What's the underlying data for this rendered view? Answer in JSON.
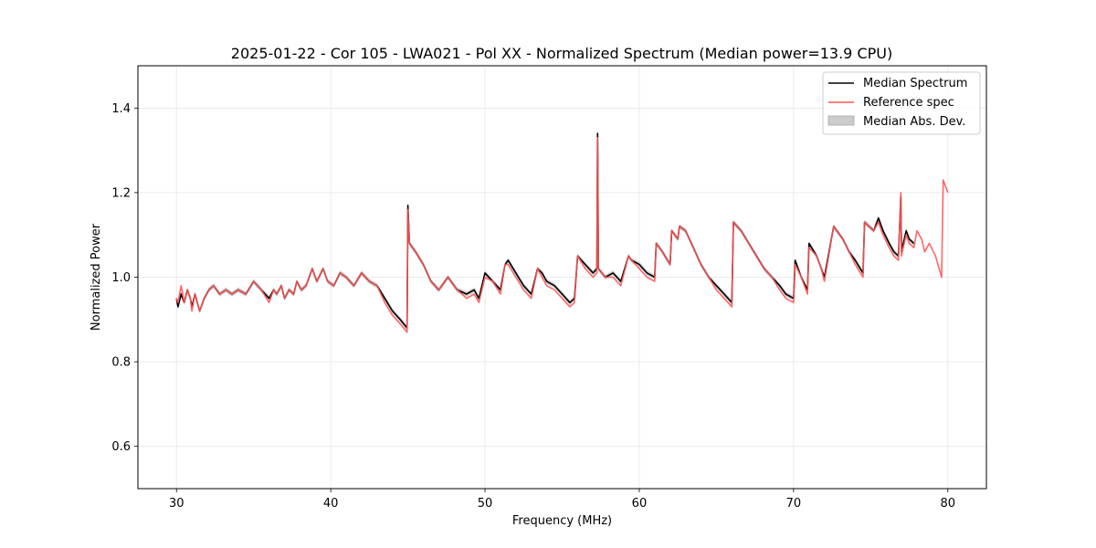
{
  "chart_data": {
    "type": "line",
    "title": "2025-01-22 - Cor 105 - LWA021 - Pol XX - Normalized Spectrum (Median power=13.9 CPU)",
    "xlabel": "Frequency (MHz)",
    "ylabel": "Normalized Power",
    "xlim": [
      27.5,
      82.5
    ],
    "ylim": [
      0.5,
      1.5
    ],
    "xticks": [
      30,
      40,
      50,
      60,
      70,
      80
    ],
    "yticks": [
      0.6,
      0.8,
      1.0,
      1.2,
      1.4
    ],
    "xtick_labels": [
      "30",
      "40",
      "50",
      "60",
      "70",
      "80"
    ],
    "ytick_labels": [
      "0.6",
      "0.8",
      "1.0",
      "1.2",
      "1.4"
    ],
    "grid": true,
    "legend_position": "top-right",
    "colors": {
      "median": "#000000",
      "reference": "#ff5555",
      "mad": "#bbbbbb"
    },
    "series": [
      {
        "name": "Median Spectrum",
        "x": [
          30.0,
          30.1,
          30.3,
          30.5,
          30.7,
          30.9,
          31.0,
          31.2,
          31.5,
          31.8,
          32.1,
          32.4,
          32.8,
          33.2,
          33.6,
          34.0,
          34.5,
          35.0,
          35.5,
          36.0,
          36.3,
          36.5,
          36.8,
          37.0,
          37.3,
          37.6,
          37.8,
          38.1,
          38.4,
          38.8,
          39.1,
          39.5,
          39.8,
          40.2,
          40.6,
          41.0,
          41.5,
          42.0,
          42.5,
          43.0,
          43.5,
          44.0,
          44.5,
          44.95,
          45.0,
          45.1,
          45.5,
          46.0,
          46.5,
          47.0,
          47.6,
          48.2,
          48.8,
          49.3,
          49.6,
          50.0,
          50.5,
          51.0,
          51.3,
          51.5,
          52.0,
          52.5,
          53.0,
          53.4,
          53.7,
          54.0,
          54.5,
          55.0,
          55.5,
          55.8,
          56.0,
          56.5,
          57.0,
          57.25,
          57.3,
          57.35,
          57.8,
          58.3,
          58.8,
          59.3,
          59.5,
          60.0,
          60.5,
          61.0,
          61.1,
          61.5,
          62.0,
          62.1,
          62.5,
          62.6,
          63.0,
          63.5,
          64.0,
          64.5,
          65.0,
          65.5,
          66.0,
          66.1,
          66.6,
          67.1,
          67.6,
          68.1,
          68.6,
          69.1,
          69.5,
          70.0,
          70.1,
          70.5,
          70.9,
          71.0,
          71.5,
          71.8,
          72.0,
          72.6,
          73.2,
          73.6,
          74.0,
          74.5,
          74.6,
          75.2,
          75.5,
          75.8,
          76.2,
          76.5,
          76.8,
          76.95,
          77.0,
          77.05,
          77.3,
          77.5,
          77.8
        ],
        "values": [
          0.95,
          0.93,
          0.96,
          0.94,
          0.97,
          0.95,
          0.93,
          0.96,
          0.92,
          0.95,
          0.97,
          0.98,
          0.96,
          0.97,
          0.96,
          0.97,
          0.96,
          0.99,
          0.97,
          0.95,
          0.97,
          0.96,
          0.98,
          0.95,
          0.97,
          0.96,
          0.99,
          0.97,
          0.98,
          1.02,
          0.99,
          1.02,
          0.99,
          0.98,
          1.01,
          1.0,
          0.98,
          1.01,
          0.99,
          0.98,
          0.95,
          0.92,
          0.9,
          0.88,
          1.17,
          1.08,
          1.06,
          1.03,
          0.99,
          0.97,
          1.0,
          0.97,
          0.96,
          0.97,
          0.95,
          1.01,
          0.99,
          0.97,
          1.03,
          1.04,
          1.01,
          0.98,
          0.96,
          1.02,
          1.01,
          0.99,
          0.98,
          0.96,
          0.94,
          0.95,
          1.05,
          1.03,
          1.01,
          1.02,
          1.34,
          1.02,
          1.0,
          1.01,
          0.99,
          1.05,
          1.04,
          1.03,
          1.01,
          1.0,
          1.08,
          1.06,
          1.03,
          1.11,
          1.09,
          1.12,
          1.11,
          1.07,
          1.03,
          1.0,
          0.98,
          0.96,
          0.94,
          1.13,
          1.11,
          1.08,
          1.05,
          1.02,
          1.0,
          0.98,
          0.96,
          0.95,
          1.04,
          1.0,
          0.97,
          1.08,
          1.05,
          1.02,
          1.0,
          1.12,
          1.09,
          1.06,
          1.04,
          1.01,
          1.13,
          1.11,
          1.14,
          1.11,
          1.08,
          1.06,
          1.05,
          1.19,
          1.06,
          1.07,
          1.11,
          1.09,
          1.08
        ]
      },
      {
        "name": "Reference spec",
        "x": [
          30.0,
          30.1,
          30.3,
          30.5,
          30.7,
          30.9,
          31.0,
          31.2,
          31.5,
          31.8,
          32.1,
          32.4,
          32.8,
          33.2,
          33.6,
          34.0,
          34.5,
          35.0,
          35.5,
          36.0,
          36.3,
          36.5,
          36.8,
          37.0,
          37.3,
          37.6,
          37.8,
          38.1,
          38.4,
          38.8,
          39.1,
          39.5,
          39.8,
          40.2,
          40.6,
          41.0,
          41.5,
          42.0,
          42.5,
          43.0,
          43.5,
          44.0,
          44.5,
          44.95,
          45.0,
          45.1,
          45.5,
          46.0,
          46.5,
          47.0,
          47.6,
          48.2,
          48.8,
          49.3,
          49.6,
          50.0,
          50.5,
          51.0,
          51.3,
          51.5,
          52.0,
          52.5,
          53.0,
          53.4,
          53.7,
          54.0,
          54.5,
          55.0,
          55.5,
          55.8,
          56.0,
          56.5,
          57.0,
          57.25,
          57.3,
          57.35,
          57.8,
          58.3,
          58.8,
          59.3,
          59.5,
          60.0,
          60.5,
          61.0,
          61.1,
          61.5,
          62.0,
          62.1,
          62.5,
          62.6,
          63.0,
          63.5,
          64.0,
          64.5,
          65.0,
          65.5,
          66.0,
          66.1,
          66.6,
          67.1,
          67.6,
          68.1,
          68.6,
          69.1,
          69.5,
          70.0,
          70.1,
          70.5,
          70.9,
          71.0,
          71.5,
          71.8,
          72.0,
          72.6,
          73.2,
          73.6,
          74.0,
          74.5,
          74.6,
          75.2,
          75.5,
          75.8,
          76.2,
          76.5,
          76.8,
          76.95,
          77.0,
          77.05,
          77.3,
          77.5,
          77.8,
          78.0,
          78.3,
          78.5,
          78.8,
          79.2,
          79.6,
          79.7,
          80.0
        ],
        "values": [
          0.95,
          0.94,
          0.98,
          0.94,
          0.97,
          0.95,
          0.92,
          0.96,
          0.92,
          0.95,
          0.97,
          0.98,
          0.96,
          0.97,
          0.96,
          0.97,
          0.96,
          0.99,
          0.97,
          0.94,
          0.97,
          0.96,
          0.98,
          0.95,
          0.97,
          0.96,
          0.99,
          0.97,
          0.98,
          1.02,
          0.99,
          1.02,
          0.99,
          0.98,
          1.01,
          1.0,
          0.98,
          1.01,
          0.99,
          0.98,
          0.94,
          0.91,
          0.89,
          0.87,
          1.16,
          1.08,
          1.06,
          1.03,
          0.99,
          0.97,
          1.0,
          0.97,
          0.95,
          0.96,
          0.94,
          1.0,
          0.99,
          0.96,
          1.03,
          1.03,
          1.0,
          0.97,
          0.95,
          1.02,
          1.0,
          0.98,
          0.97,
          0.95,
          0.93,
          0.94,
          1.05,
          1.02,
          1.0,
          1.01,
          1.33,
          1.02,
          1.0,
          1.0,
          0.98,
          1.05,
          1.04,
          1.02,
          1.0,
          0.99,
          1.08,
          1.06,
          1.03,
          1.11,
          1.09,
          1.12,
          1.11,
          1.07,
          1.03,
          1.0,
          0.97,
          0.95,
          0.93,
          1.13,
          1.11,
          1.08,
          1.05,
          1.02,
          1.0,
          0.97,
          0.95,
          0.94,
          1.03,
          1.0,
          0.96,
          1.07,
          1.05,
          1.02,
          0.99,
          1.12,
          1.09,
          1.06,
          1.03,
          1.0,
          1.13,
          1.11,
          1.13,
          1.1,
          1.07,
          1.05,
          1.04,
          1.2,
          1.05,
          1.06,
          1.1,
          1.08,
          1.07,
          1.11,
          1.09,
          1.06,
          1.08,
          1.05,
          1.0,
          1.23,
          1.2
        ]
      }
    ],
    "legend_entries": [
      "Median Spectrum",
      "Reference spec",
      "Median Abs. Dev."
    ]
  }
}
